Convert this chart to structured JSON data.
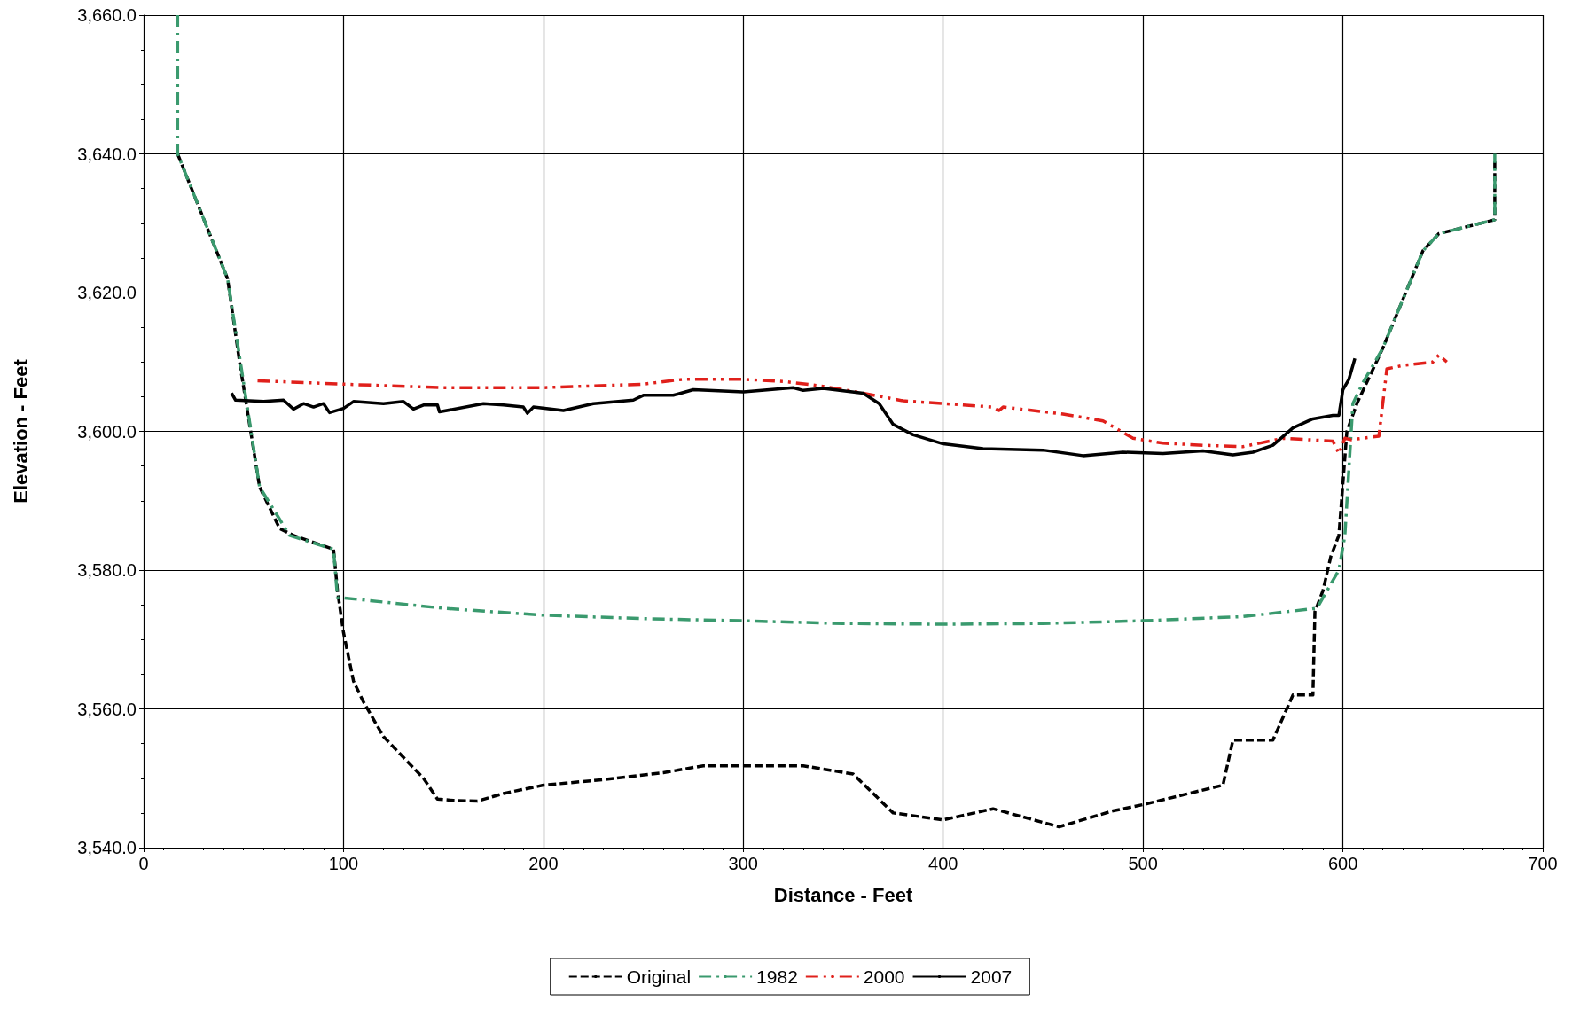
{
  "chart_data": {
    "type": "line",
    "xlabel": "Distance - Feet",
    "ylabel": "Elevation - Feet",
    "xlim": [
      0,
      700
    ],
    "xticks": [
      0,
      100,
      200,
      300,
      400,
      500,
      600,
      700
    ],
    "ylim": [
      3540,
      3660
    ],
    "yticks": [
      {
        "value": 3540,
        "label": "3,540.0"
      },
      {
        "value": 3560,
        "label": "3,560.0"
      },
      {
        "value": 3580,
        "label": "3,580.0"
      },
      {
        "value": 3600,
        "label": "3,600.0"
      },
      {
        "value": 3620,
        "label": "3,620.0"
      },
      {
        "value": 3640,
        "label": "3,640.0"
      },
      {
        "value": 3660,
        "label": "3,660.0"
      }
    ],
    "grid": true,
    "legend": "bottom",
    "marker": "none",
    "series": [
      {
        "name": "Original",
        "color": "#000000",
        "line_style": "dashed",
        "x": [
          17,
          42,
          48,
          58,
          68,
          75,
          95,
          97,
          100,
          105,
          110,
          120,
          130,
          140,
          147,
          155,
          167,
          180,
          200,
          230,
          260,
          280,
          300,
          330,
          355,
          375,
          400,
          425,
          458,
          485,
          500,
          540,
          545,
          565,
          575,
          585,
          586,
          590,
          594,
          598,
          602,
          607,
          620,
          640,
          648,
          676,
          676
        ],
        "values": [
          3640,
          3622,
          3610,
          3592,
          3586,
          3585,
          3583,
          3577,
          3571,
          3564,
          3561,
          3556,
          3553,
          3550,
          3547,
          3546.8,
          3546.7,
          3547.8,
          3549,
          3549.8,
          3550.8,
          3551.8,
          3551.8,
          3551.8,
          3550.6,
          3545,
          3544,
          3545.6,
          3543,
          3545.3,
          3546.2,
          3549,
          3555.5,
          3555.5,
          3562,
          3562,
          3574,
          3577,
          3582,
          3585,
          3600,
          3604,
          3612,
          3626,
          3628.5,
          3630.5,
          3639
        ]
      },
      {
        "name": "1982",
        "color": "#3a9a6e",
        "line_style": "dashdot",
        "x": [
          17,
          17,
          42,
          58,
          73,
          95,
          97,
          100,
          150,
          200,
          250,
          300,
          350,
          400,
          450,
          500,
          550,
          587,
          598,
          601,
          605,
          610,
          620,
          640,
          648,
          676,
          676
        ],
        "values": [
          3660,
          3640,
          3622,
          3592,
          3585,
          3583,
          3576,
          3576,
          3574.5,
          3573.5,
          3573,
          3572.7,
          3572.3,
          3572.2,
          3572.3,
          3572.7,
          3573.3,
          3574.5,
          3580,
          3585,
          3604,
          3607,
          3612,
          3626,
          3628.5,
          3630.5,
          3640
        ]
      },
      {
        "name": "2000",
        "color": "#e0201b",
        "line_style": "dashdotdot",
        "x": [
          57,
          100,
          150,
          200,
          250,
          270,
          300,
          320,
          340,
          360,
          380,
          410,
          425,
          428,
          430,
          460,
          480,
          495,
          510,
          530,
          550,
          570,
          595,
          598,
          601,
          604,
          618,
          622,
          630,
          645,
          648,
          652
        ],
        "values": [
          3607.3,
          3606.8,
          3606.3,
          3606.3,
          3606.8,
          3607.5,
          3607.5,
          3607.2,
          3606.5,
          3605.5,
          3604.4,
          3603.8,
          3603.5,
          3603,
          3603.5,
          3602.5,
          3601.5,
          3599,
          3598.3,
          3598,
          3597.8,
          3599,
          3598.6,
          3596.8,
          3599,
          3598.8,
          3599.3,
          3609,
          3609.5,
          3610,
          3611,
          3610
        ]
      },
      {
        "name": "2007",
        "color": "#000000",
        "line_style": "solid",
        "x": [
          44,
          46,
          60,
          70,
          75,
          80,
          85,
          90,
          93,
          100,
          105,
          120,
          130,
          135,
          140,
          147,
          148,
          170,
          180,
          190,
          192,
          195,
          210,
          225,
          245,
          250,
          265,
          275,
          300,
          325,
          330,
          340,
          360,
          368,
          375,
          385,
          400,
          420,
          450,
          470,
          490,
          510,
          530,
          545,
          555,
          565,
          575,
          585,
          595,
          598,
          600,
          603,
          606
        ],
        "values": [
          3605.5,
          3604.5,
          3604.3,
          3604.5,
          3603.2,
          3604,
          3603.5,
          3604,
          3602.7,
          3603.3,
          3604.3,
          3604,
          3604.3,
          3603.2,
          3603.8,
          3603.8,
          3602.8,
          3604,
          3603.8,
          3603.5,
          3602.6,
          3603.5,
          3603,
          3604,
          3604.5,
          3605.2,
          3605.2,
          3606,
          3605.7,
          3606.3,
          3605.9,
          3606.2,
          3605.5,
          3604,
          3601,
          3599.5,
          3598.2,
          3597.5,
          3597.3,
          3596.5,
          3597,
          3596.8,
          3597.2,
          3596.6,
          3597,
          3598,
          3600.5,
          3601.8,
          3602.3,
          3602.3,
          3606,
          3607.5,
          3610.5
        ]
      }
    ]
  }
}
